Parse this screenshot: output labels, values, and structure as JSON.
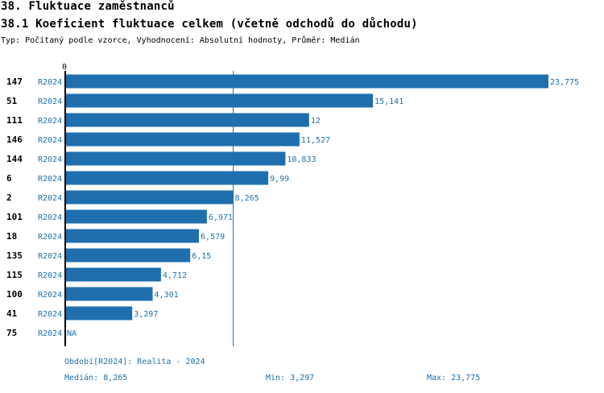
{
  "heading": "38. Fluktuace zaměstnanců",
  "subheading": "38.1 Koeficient fluktuace celkem (včetně odchodů do důchodu)",
  "meta": "Typ: Počítaný podle vzorce, Vyhodnocení: Absolutní hodnoty, Průměr: Medián",
  "colors": {
    "bar": "#1f6fae",
    "label": "#1f6fae",
    "text": "#000000"
  },
  "chart_data": {
    "type": "bar",
    "orientation": "horizontal",
    "axis_zero_label": "0",
    "categories": [
      "147",
      "51",
      "111",
      "146",
      "144",
      "6",
      "2",
      "101",
      "18",
      "135",
      "115",
      "100",
      "41",
      "75"
    ],
    "series": [
      {
        "name": "R2024",
        "values": [
          23.775,
          15.141,
          12,
          11.527,
          10.833,
          9.99,
          8.265,
          6.971,
          6.579,
          6.15,
          4.712,
          4.301,
          3.297,
          null
        ],
        "value_labels": [
          "23,775",
          "15,141",
          "12",
          "11,527",
          "10,833",
          "9,99",
          "8,265",
          "6,971",
          "6,579",
          "6,15",
          "4,712",
          "4,301",
          "3,297",
          "NA"
        ]
      }
    ],
    "reference_line": {
      "name": "Medián",
      "value": 8.265
    },
    "xlim": [
      0,
      23.775
    ]
  },
  "footer": {
    "period": "Období[R2024]: Realita - 2024",
    "median": "Medián: 8,265",
    "min": "Min: 3,297",
    "max": "Max: 23,775"
  }
}
